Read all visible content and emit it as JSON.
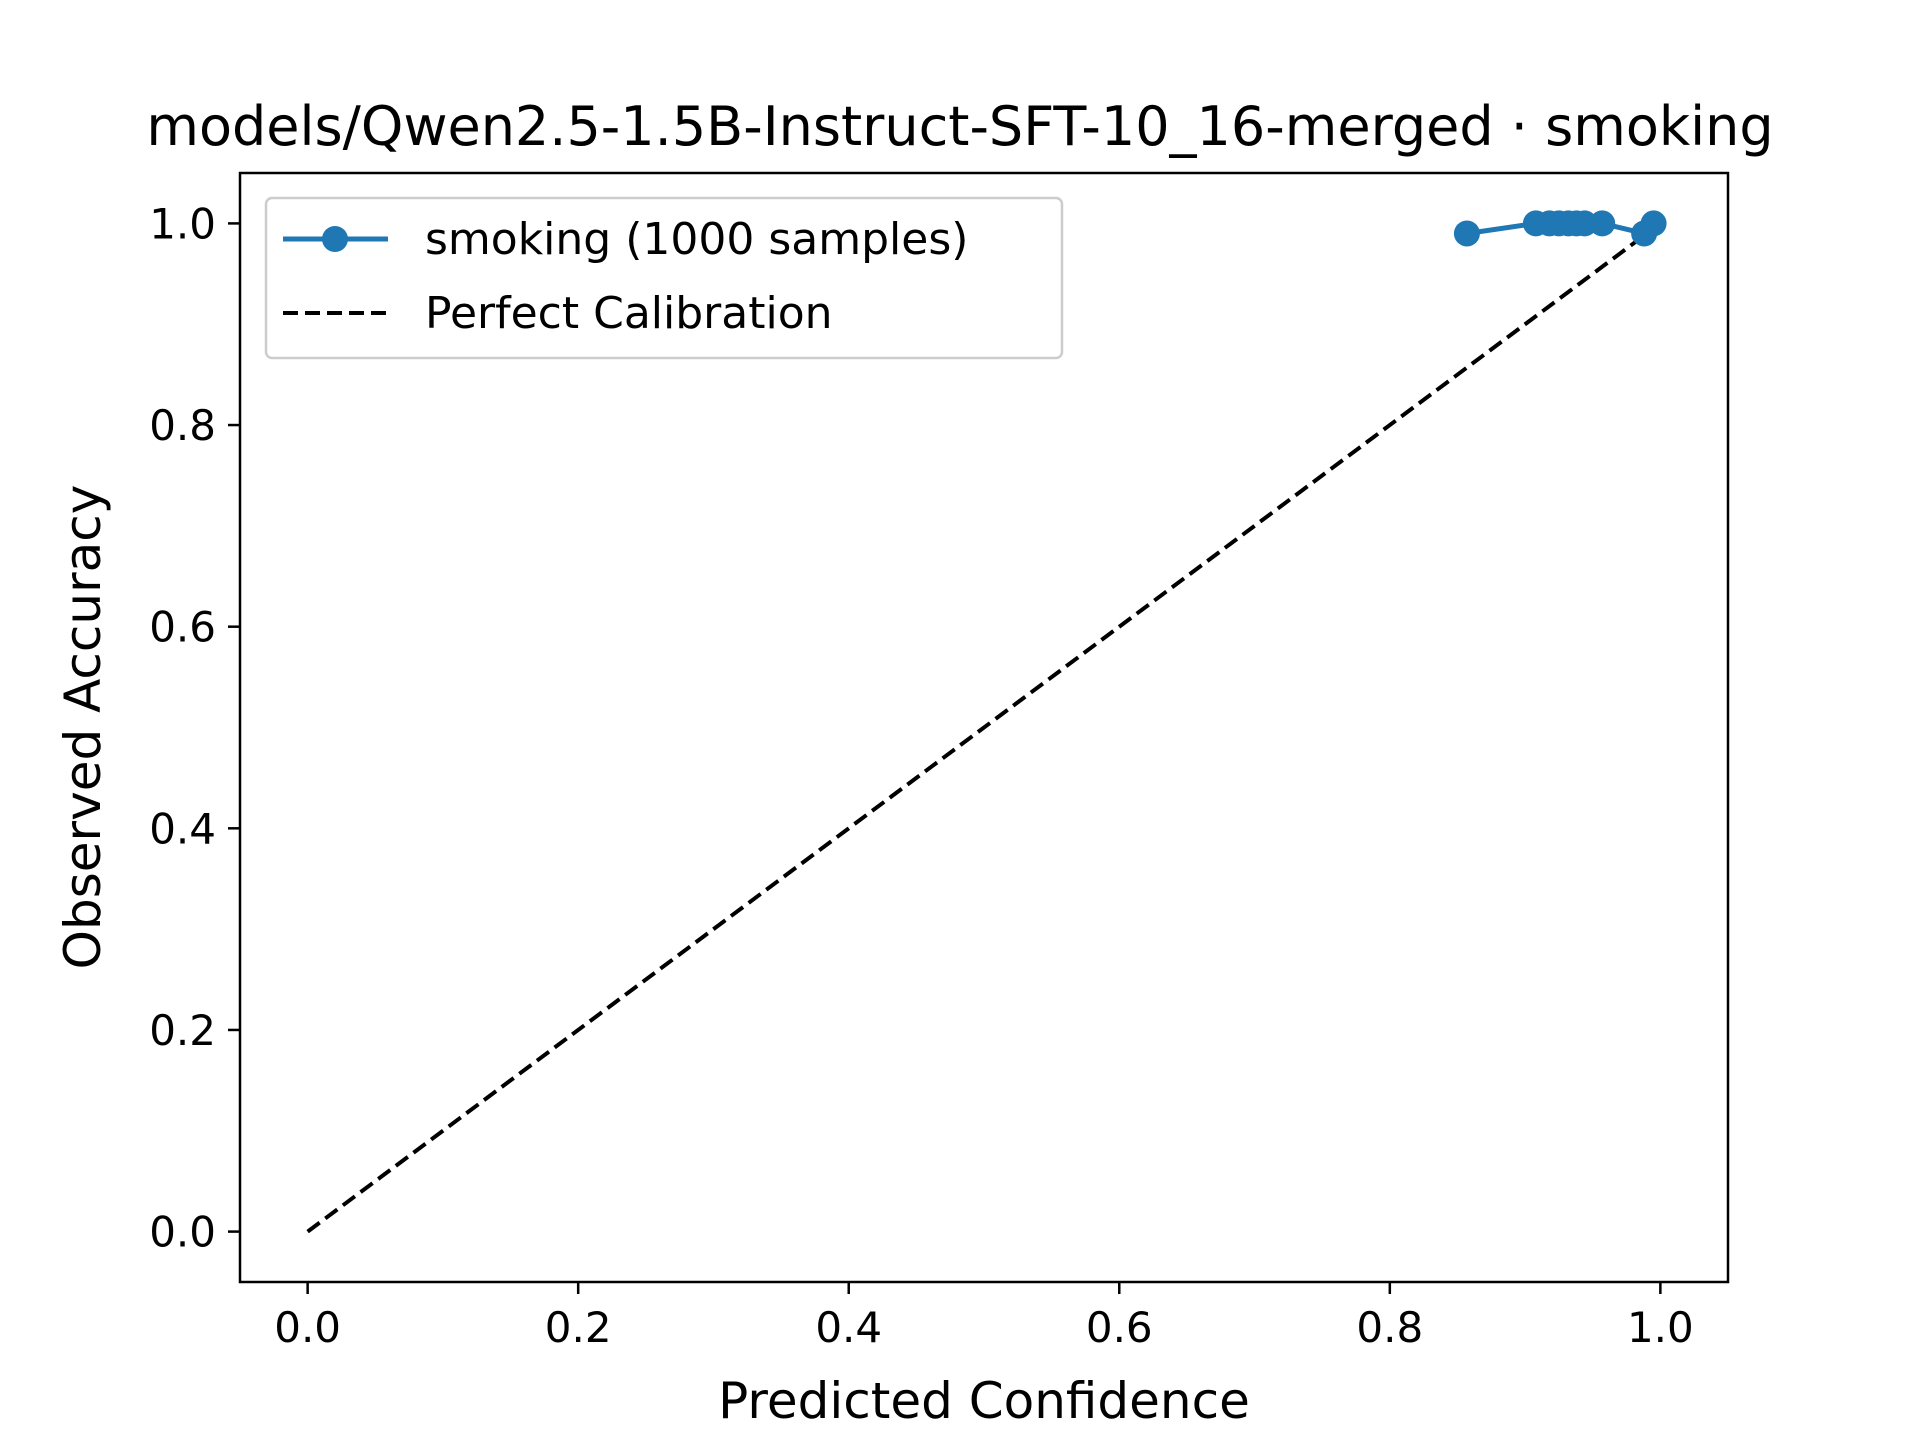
{
  "chart_data": {
    "type": "line",
    "title": "models/Qwen2.5-1.5B-Instruct-SFT-10_16-merged · smoking",
    "xlabel": "Predicted Confidence",
    "ylabel": "Observed Accuracy",
    "xlim": [
      -0.05,
      1.05
    ],
    "ylim": [
      -0.05,
      1.05
    ],
    "xticks": [
      {
        "value": 0.0,
        "label": "0.0"
      },
      {
        "value": 0.2,
        "label": "0.2"
      },
      {
        "value": 0.4,
        "label": "0.4"
      },
      {
        "value": 0.6,
        "label": "0.6"
      },
      {
        "value": 0.8,
        "label": "0.8"
      },
      {
        "value": 1.0,
        "label": "1.0"
      }
    ],
    "yticks": [
      {
        "value": 0.0,
        "label": "0.0"
      },
      {
        "value": 0.2,
        "label": "0.2"
      },
      {
        "value": 0.4,
        "label": "0.4"
      },
      {
        "value": 0.6,
        "label": "0.6"
      },
      {
        "value": 0.8,
        "label": "0.8"
      },
      {
        "value": 1.0,
        "label": "1.0"
      }
    ],
    "grid": false,
    "legend_position": "upper left",
    "series": [
      {
        "name": "smoking (1000 samples)",
        "color": "#1f77b4",
        "marker": "circle",
        "line_style": "solid",
        "points": [
          {
            "x": 0.857,
            "y": 0.99
          },
          {
            "x": 0.908,
            "y": 1.0
          },
          {
            "x": 0.918,
            "y": 1.0
          },
          {
            "x": 0.925,
            "y": 1.0
          },
          {
            "x": 0.932,
            "y": 1.0
          },
          {
            "x": 0.938,
            "y": 1.0
          },
          {
            "x": 0.944,
            "y": 1.0
          },
          {
            "x": 0.957,
            "y": 1.0
          },
          {
            "x": 0.988,
            "y": 0.99
          },
          {
            "x": 0.995,
            "y": 1.0
          }
        ]
      },
      {
        "name": "Perfect Calibration",
        "color": "#000000",
        "marker": "none",
        "line_style": "dashed",
        "points": [
          {
            "x": 0.0,
            "y": 0.0
          },
          {
            "x": 1.0,
            "y": 1.0
          }
        ]
      }
    ]
  }
}
